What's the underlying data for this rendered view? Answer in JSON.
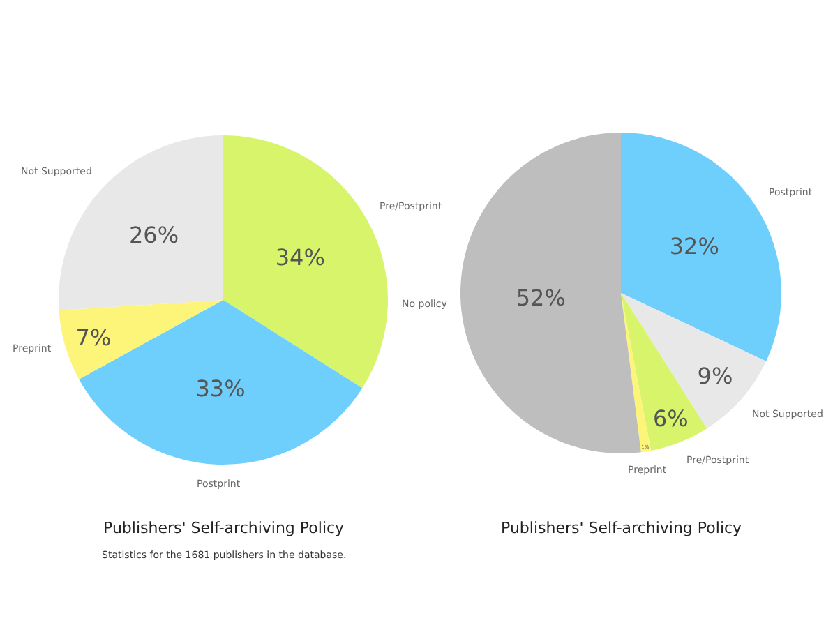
{
  "chart_data": [
    {
      "type": "pie",
      "title": "Publishers' Self-archiving Policy",
      "annotations": [
        "Statistics for the 1681 publishers in the database."
      ],
      "categories": [
        "Pre/Postprint",
        "Postprint",
        "Preprint",
        "Not Supported"
      ],
      "values": [
        34,
        33,
        7,
        26
      ],
      "value_labels": [
        "34%",
        "33%",
        "7%",
        "26%"
      ],
      "colors": [
        "#d8f46a",
        "#6fcffc",
        "#fdf57a",
        "#e8e8e8"
      ]
    },
    {
      "type": "pie",
      "title": "Publishers' Self-archiving Policy",
      "categories": [
        "Postprint",
        "Not Supported",
        "Pre/Postprint",
        "Preprint",
        "No policy"
      ],
      "values": [
        32,
        9,
        6,
        1,
        52
      ],
      "value_labels": [
        "32%",
        "9%",
        "6%",
        "1%",
        "52%"
      ],
      "colors": [
        "#6fcffc",
        "#e8e8e8",
        "#d8f46a",
        "#fdf57a",
        "#bebebe"
      ]
    }
  ]
}
